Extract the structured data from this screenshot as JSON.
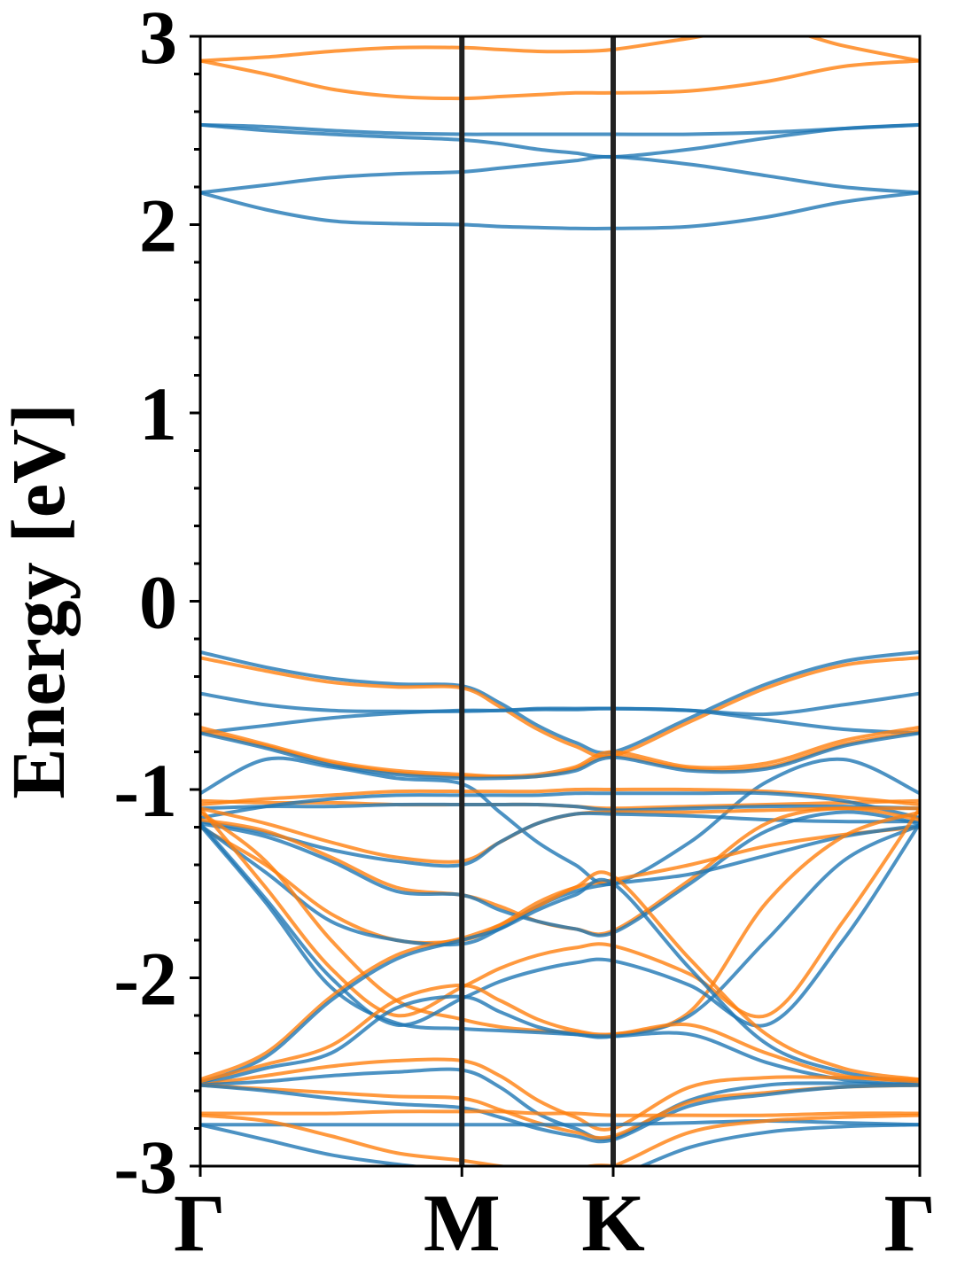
{
  "chart_data": {
    "type": "line",
    "title": "",
    "xlabel": "",
    "ylabel": "Energy [eV]",
    "ylim": [
      -3,
      3
    ],
    "grid": false,
    "high_symmetry_points": [
      {
        "label": "Γ",
        "k": 0.0
      },
      {
        "label": "M",
        "k": 0.3636
      },
      {
        "label": "K",
        "k": 0.5739
      },
      {
        "label": "Γ",
        "k": 1.0
      }
    ],
    "yticks": [
      {
        "value": -3,
        "label": "-3"
      },
      {
        "value": -2,
        "label": "-2"
      },
      {
        "value": -1,
        "label": "-1"
      },
      {
        "value": 0,
        "label": "0"
      },
      {
        "value": 1,
        "label": "1"
      },
      {
        "value": 2,
        "label": "2"
      },
      {
        "value": 3,
        "label": "3"
      }
    ],
    "x_k": [
      0.0,
      0.0909,
      0.1818,
      0.2727,
      0.3636,
      0.4162,
      0.4688,
      0.5213,
      0.5739,
      0.6804,
      0.7869,
      0.8935,
      1.0
    ],
    "colors": {
      "blue": "#1f77b4",
      "orange": "#ff7f0e",
      "vline": "#222222"
    },
    "series": [
      {
        "color": "blue",
        "energies": [
          2.53,
          2.52,
          2.5,
          2.485,
          2.48,
          2.48,
          2.48,
          2.48,
          2.48,
          2.48,
          2.49,
          2.51,
          2.53
        ]
      },
      {
        "color": "blue",
        "energies": [
          2.53,
          2.5,
          2.48,
          2.465,
          2.45,
          2.43,
          2.4,
          2.38,
          2.36,
          2.4,
          2.46,
          2.51,
          2.53
        ]
      },
      {
        "color": "blue",
        "energies": [
          2.17,
          2.21,
          2.25,
          2.27,
          2.28,
          2.3,
          2.32,
          2.34,
          2.36,
          2.32,
          2.26,
          2.2,
          2.17
        ]
      },
      {
        "color": "blue",
        "energies": [
          2.17,
          2.08,
          2.02,
          2.005,
          2.0,
          1.99,
          1.985,
          1.98,
          1.98,
          1.99,
          2.04,
          2.12,
          2.17
        ]
      },
      {
        "color": "orange",
        "energies": [
          2.87,
          2.89,
          2.92,
          2.94,
          2.94,
          2.93,
          2.92,
          2.92,
          2.93,
          2.99,
          3.05,
          2.95,
          2.87
        ]
      },
      {
        "color": "orange",
        "energies": [
          2.87,
          2.8,
          2.72,
          2.68,
          2.67,
          2.68,
          2.69,
          2.7,
          2.7,
          2.71,
          2.76,
          2.84,
          2.87
        ]
      },
      {
        "color": "blue",
        "energies": [
          -0.27,
          -0.35,
          -0.41,
          -0.44,
          -0.45,
          -0.54,
          -0.66,
          -0.75,
          -0.8,
          -0.62,
          -0.44,
          -0.32,
          -0.27
        ]
      },
      {
        "color": "orange",
        "energies": [
          -0.3,
          -0.37,
          -0.43,
          -0.455,
          -0.46,
          -0.56,
          -0.68,
          -0.77,
          -0.82,
          -0.64,
          -0.46,
          -0.34,
          -0.3
        ]
      },
      {
        "color": "blue",
        "energies": [
          -0.49,
          -0.55,
          -0.58,
          -0.585,
          -0.585,
          -0.58,
          -0.575,
          -0.575,
          -0.57,
          -0.58,
          -0.6,
          -0.55,
          -0.49
        ]
      },
      {
        "color": "blue",
        "energies": [
          -0.7,
          -0.66,
          -0.62,
          -0.595,
          -0.58,
          -0.58,
          -0.57,
          -0.57,
          -0.57,
          -0.58,
          -0.63,
          -0.68,
          -0.7
        ]
      },
      {
        "color": "orange",
        "energies": [
          -0.67,
          -0.76,
          -0.85,
          -0.9,
          -0.92,
          -0.93,
          -0.92,
          -0.88,
          -0.8,
          -0.88,
          -0.86,
          -0.74,
          -0.67
        ]
      },
      {
        "color": "orange",
        "energies": [
          -0.69,
          -0.77,
          -0.86,
          -0.91,
          -0.93,
          -0.93,
          -0.93,
          -0.89,
          -0.82,
          -0.89,
          -0.88,
          -0.76,
          -0.69
        ]
      },
      {
        "color": "blue",
        "energies": [
          -0.7,
          -0.78,
          -0.87,
          -0.92,
          -0.94,
          -0.94,
          -0.93,
          -0.9,
          -0.83,
          -0.9,
          -0.89,
          -0.77,
          -0.7
        ]
      },
      {
        "color": "blue",
        "energies": [
          -1.02,
          -0.84,
          -0.88,
          -0.94,
          -0.97,
          -1.12,
          -1.28,
          -1.4,
          -1.5,
          -1.28,
          -0.96,
          -0.84,
          -1.02
        ]
      },
      {
        "color": "orange",
        "energies": [
          -1.06,
          -1.07,
          -1.07,
          -1.08,
          -1.08,
          -1.08,
          -1.08,
          -1.09,
          -1.1,
          -1.09,
          -1.08,
          -1.07,
          -1.06
        ]
      },
      {
        "color": "blue",
        "energies": [
          -1.1,
          -1.09,
          -1.09,
          -1.08,
          -1.08,
          -1.08,
          -1.08,
          -1.09,
          -1.11,
          -1.1,
          -1.09,
          -1.09,
          -1.1
        ]
      },
      {
        "color": "orange",
        "energies": [
          -1.08,
          -1.05,
          -1.03,
          -1.01,
          -1.01,
          -1.01,
          -1.01,
          -1.0,
          -1.0,
          -1.0,
          -1.01,
          -1.04,
          -1.08
        ]
      },
      {
        "color": "blue",
        "energies": [
          -1.15,
          -1.09,
          -1.05,
          -1.03,
          -1.03,
          -1.03,
          -1.03,
          -1.02,
          -1.02,
          -1.02,
          -1.02,
          -1.06,
          -1.15
        ]
      },
      {
        "color": "orange",
        "energies": [
          -1.1,
          -1.18,
          -1.28,
          -1.36,
          -1.38,
          -1.28,
          -1.18,
          -1.13,
          -1.12,
          -1.12,
          -1.11,
          -1.1,
          -1.1
        ]
      },
      {
        "color": "blue",
        "energies": [
          -1.17,
          -1.23,
          -1.32,
          -1.38,
          -1.4,
          -1.28,
          -1.18,
          -1.13,
          -1.13,
          -1.14,
          -1.16,
          -1.17,
          -1.17
        ]
      },
      {
        "color": "orange",
        "energies": [
          -1.16,
          -1.22,
          -1.36,
          -1.52,
          -1.56,
          -1.62,
          -1.7,
          -1.74,
          -1.75,
          -1.48,
          -1.18,
          -1.1,
          -1.16
        ]
      },
      {
        "color": "blue",
        "energies": [
          -1.18,
          -1.25,
          -1.38,
          -1.54,
          -1.56,
          -1.64,
          -1.7,
          -1.74,
          -1.76,
          -1.5,
          -1.22,
          -1.12,
          -1.18
        ]
      },
      {
        "color": "orange",
        "energies": [
          -1.2,
          -1.4,
          -1.66,
          -1.8,
          -1.8,
          -1.72,
          -1.6,
          -1.52,
          -1.48,
          -1.4,
          -1.3,
          -1.24,
          -1.2
        ]
      },
      {
        "color": "blue",
        "energies": [
          -1.19,
          -1.44,
          -1.7,
          -1.8,
          -1.82,
          -1.74,
          -1.62,
          -1.54,
          -1.5,
          -1.45,
          -1.35,
          -1.25,
          -1.19
        ]
      },
      {
        "color": "orange",
        "energies": [
          -1.12,
          -1.38,
          -1.8,
          -2.12,
          -2.22,
          -2.26,
          -2.28,
          -2.29,
          -2.3,
          -2.18,
          -1.6,
          -1.25,
          -1.12
        ]
      },
      {
        "color": "blue",
        "energies": [
          -1.19,
          -1.6,
          -2.05,
          -2.24,
          -2.27,
          -2.28,
          -2.29,
          -2.3,
          -2.31,
          -2.2,
          -1.8,
          -1.38,
          -1.19
        ]
      },
      {
        "color": "orange",
        "energies": [
          -1.1,
          -1.52,
          -1.95,
          -2.2,
          -2.05,
          -1.95,
          -1.88,
          -1.84,
          -1.83,
          -1.98,
          -2.2,
          -1.7,
          -1.1
        ]
      },
      {
        "color": "blue",
        "energies": [
          -1.18,
          -1.58,
          -2.0,
          -2.25,
          -2.11,
          -2.02,
          -1.96,
          -1.92,
          -1.91,
          -2.04,
          -2.25,
          -1.8,
          -1.18
        ]
      },
      {
        "color": "orange",
        "energies": [
          -2.54,
          -2.4,
          -2.1,
          -1.88,
          -1.79,
          -1.72,
          -1.62,
          -1.52,
          -1.46,
          -1.9,
          -2.3,
          -2.48,
          -2.54
        ]
      },
      {
        "color": "blue",
        "energies": [
          -2.56,
          -2.42,
          -2.12,
          -1.9,
          -1.8,
          -1.74,
          -1.64,
          -1.56,
          -1.5,
          -1.95,
          -2.35,
          -2.5,
          -2.56
        ]
      },
      {
        "color": "orange",
        "energies": [
          -2.55,
          -2.46,
          -2.36,
          -2.12,
          -2.04,
          -2.12,
          -2.22,
          -2.28,
          -2.3,
          -2.25,
          -2.4,
          -2.52,
          -2.55
        ]
      },
      {
        "color": "blue",
        "energies": [
          -2.57,
          -2.48,
          -2.4,
          -2.16,
          -2.1,
          -2.18,
          -2.26,
          -2.3,
          -2.31,
          -2.3,
          -2.45,
          -2.54,
          -2.57
        ]
      },
      {
        "color": "orange",
        "energies": [
          -2.57,
          -2.52,
          -2.47,
          -2.44,
          -2.44,
          -2.52,
          -2.65,
          -2.74,
          -2.8,
          -2.58,
          -2.53,
          -2.53,
          -2.54
        ]
      },
      {
        "color": "blue",
        "energies": [
          -2.57,
          -2.55,
          -2.52,
          -2.5,
          -2.49,
          -2.58,
          -2.72,
          -2.8,
          -2.85,
          -2.65,
          -2.57,
          -2.56,
          -2.57
        ]
      },
      {
        "color": "orange",
        "energies": [
          -2.57,
          -2.59,
          -2.61,
          -2.63,
          -2.64,
          -2.7,
          -2.77,
          -2.82,
          -2.84,
          -2.66,
          -2.61,
          -2.58,
          -2.57
        ]
      },
      {
        "color": "blue",
        "energies": [
          -2.57,
          -2.6,
          -2.64,
          -2.67,
          -2.69,
          -2.74,
          -2.8,
          -2.84,
          -2.86,
          -2.68,
          -2.62,
          -2.58,
          -2.57
        ]
      },
      {
        "color": "orange",
        "energies": [
          -2.72,
          -2.72,
          -2.72,
          -2.71,
          -2.71,
          -2.71,
          -2.72,
          -2.72,
          -2.73,
          -2.73,
          -2.73,
          -2.72,
          -2.72
        ]
      },
      {
        "color": "blue",
        "energies": [
          -2.78,
          -2.78,
          -2.78,
          -2.78,
          -2.78,
          -2.78,
          -2.78,
          -2.78,
          -2.78,
          -2.77,
          -2.76,
          -2.77,
          -2.78
        ]
      },
      {
        "color": "orange",
        "energies": [
          -2.73,
          -2.76,
          -2.84,
          -2.93,
          -2.97,
          -3.0,
          -3.02,
          -3.02,
          -3.0,
          -2.82,
          -2.76,
          -2.74,
          -2.73
        ]
      },
      {
        "color": "blue",
        "energies": [
          -2.78,
          -2.86,
          -2.94,
          -2.99,
          -3.03,
          -3.06,
          -3.08,
          -3.08,
          -3.06,
          -2.9,
          -2.82,
          -2.79,
          -2.78
        ]
      },
      {
        "color": "orange",
        "energies": [
          -3.2,
          -3.15,
          -3.1,
          -3.05,
          -3.04,
          -3.03,
          -3.02,
          -3.01,
          -3.0,
          -3.08,
          -3.2,
          -3.25,
          -3.2
        ]
      },
      {
        "color": "blue",
        "energies": [
          -3.2,
          -3.18,
          -3.12,
          -3.08,
          -3.06,
          -3.05,
          -3.05,
          -3.04,
          -3.04,
          -3.1,
          -3.2,
          -3.25,
          -3.2
        ]
      }
    ]
  }
}
